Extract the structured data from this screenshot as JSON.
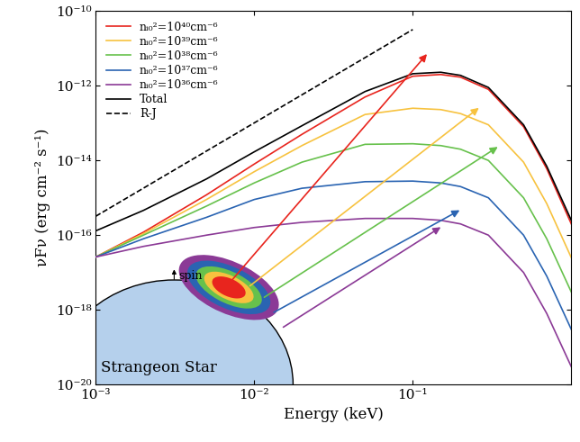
{
  "chart_data": {
    "type": "line",
    "xlabel": "Energy (keV)",
    "ylabel": "νFν (erg cm⁻² s⁻¹)",
    "log": true,
    "legend": "upper left",
    "xlim": [
      0.001,
      1.0
    ],
    "ylim": [
      1e-20,
      1e-10
    ],
    "xticks": [
      {
        "value": 0.001,
        "label": "10⁻³"
      },
      {
        "value": 0.01,
        "label": "10⁻²"
      },
      {
        "value": 0.1,
        "label": "10⁻¹"
      }
    ],
    "yticks": [
      {
        "value": 1e-20,
        "label": "10⁻²⁰"
      },
      {
        "value": 1e-18,
        "label": "10⁻¹⁸"
      },
      {
        "value": 1e-16,
        "label": "10⁻¹⁶"
      },
      {
        "value": 1e-14,
        "label": "10⁻¹⁴"
      },
      {
        "value": 1e-12,
        "label": "10⁻¹²"
      },
      {
        "value": 1e-10,
        "label": "10⁻¹⁰"
      }
    ],
    "annotations": [
      "Strangeon Star",
      "spin"
    ],
    "x": [
      0.001,
      0.002,
      0.005,
      0.01,
      0.02,
      0.05,
      0.1,
      0.15,
      0.2,
      0.3,
      0.5,
      0.7,
      1.0
    ],
    "series": [
      {
        "name": "nᵢ₀²=10⁴⁰cm⁻⁶",
        "color": "#e8251e",
        "line_style": "solid",
        "values": [
          2.6e-17,
          1.2e-16,
          1.2e-15,
          8e-15,
          5e-14,
          5e-13,
          1.8e-12,
          2e-12,
          1.7e-12,
          8e-13,
          8e-14,
          6e-15,
          2e-16
        ]
      },
      {
        "name": "nᵢ₀²=10³⁹cm⁻⁶",
        "color": "#f7c23f",
        "line_style": "solid",
        "values": [
          2.6e-17,
          1.1e-16,
          9e-16,
          5e-15,
          2.5e-14,
          1.7e-13,
          2.5e-13,
          2.3e-13,
          1.8e-13,
          9e-14,
          9e-15,
          7e-16,
          2.5e-17
        ]
      },
      {
        "name": "nᵢ₀²=10³⁸cm⁻⁶",
        "color": "#67c14c",
        "line_style": "solid",
        "values": [
          2.6e-17,
          1e-16,
          6e-16,
          2.5e-15,
          9e-15,
          2.7e-14,
          2.8e-14,
          2.5e-14,
          2e-14,
          1e-14,
          1e-15,
          8e-17,
          3e-18
        ]
      },
      {
        "name": "nᵢ₀²=10³⁷cm⁻⁶",
        "color": "#2a64b2",
        "line_style": "solid",
        "values": [
          2.6e-17,
          8e-17,
          3e-16,
          9e-16,
          1.8e-15,
          2.7e-15,
          2.8e-15,
          2.5e-15,
          2e-15,
          1e-15,
          1e-16,
          8e-18,
          3e-19
        ]
      },
      {
        "name": "nᵢ₀²=10³⁶cm⁻⁶",
        "color": "#8b3a96",
        "line_style": "solid",
        "values": [
          2.6e-17,
          5e-17,
          1e-16,
          1.6e-16,
          2.2e-16,
          2.8e-16,
          2.8e-16,
          2.5e-16,
          2e-16,
          1e-16,
          1e-17,
          8e-19,
          3e-20
        ]
      },
      {
        "name": "Total",
        "color": "#000000",
        "line_style": "solid",
        "values": [
          1.3e-16,
          4.6e-16,
          3.2e-15,
          1.7e-14,
          8.5e-14,
          7e-13,
          2.1e-12,
          2.3e-12,
          1.9e-12,
          9e-13,
          9e-14,
          7e-15,
          2.5e-16
        ]
      },
      {
        "name": "R-J",
        "color": "#000000",
        "line_style": "dashed",
        "x": [
          0.001,
          0.1
        ],
        "values": [
          3.2e-16,
          3.2e-11
        ]
      }
    ]
  }
}
